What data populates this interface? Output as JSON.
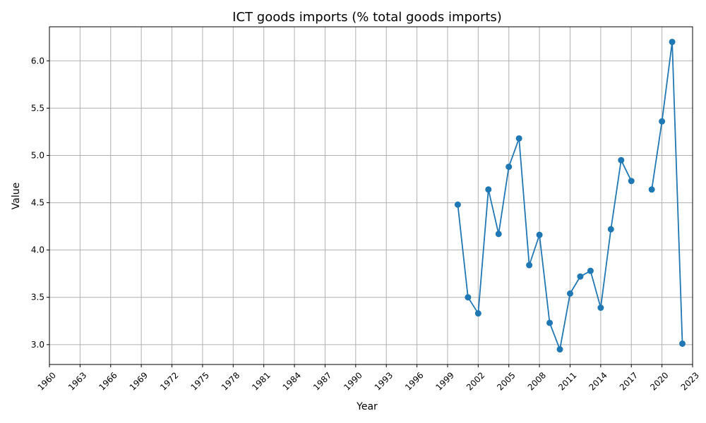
{
  "chart_data": {
    "type": "line",
    "title": "ICT goods imports (% total goods imports)",
    "xlabel": "Year",
    "ylabel": "Value",
    "xlim": [
      1960,
      2023
    ],
    "ylim": [
      2.79,
      6.36
    ],
    "x_ticks": [
      "1960",
      "1963",
      "1966",
      "1969",
      "1972",
      "1975",
      "1978",
      "1981",
      "1984",
      "1987",
      "1990",
      "1993",
      "1996",
      "1999",
      "2002",
      "2005",
      "2008",
      "2011",
      "2014",
      "2017",
      "2020",
      "2023"
    ],
    "y_ticks": [
      "3.0",
      "3.5",
      "4.0",
      "4.5",
      "5.0",
      "5.5",
      "6.0"
    ],
    "grid": true,
    "series": [
      {
        "color": "#1f77b4",
        "x": [
          2000,
          2001,
          2002,
          2003,
          2004,
          2005,
          2006,
          2007,
          2008,
          2009,
          2010,
          2011,
          2012,
          2013,
          2014,
          2015,
          2016,
          2017,
          2018,
          2019,
          2020,
          2021,
          2022
        ],
        "y": [
          4.48,
          3.5,
          3.33,
          4.64,
          4.17,
          4.88,
          5.18,
          3.84,
          4.16,
          3.23,
          2.95,
          3.54,
          3.72,
          3.78,
          3.39,
          4.22,
          4.95,
          4.73,
          null,
          4.64,
          5.36,
          6.2,
          3.01
        ]
      }
    ]
  }
}
